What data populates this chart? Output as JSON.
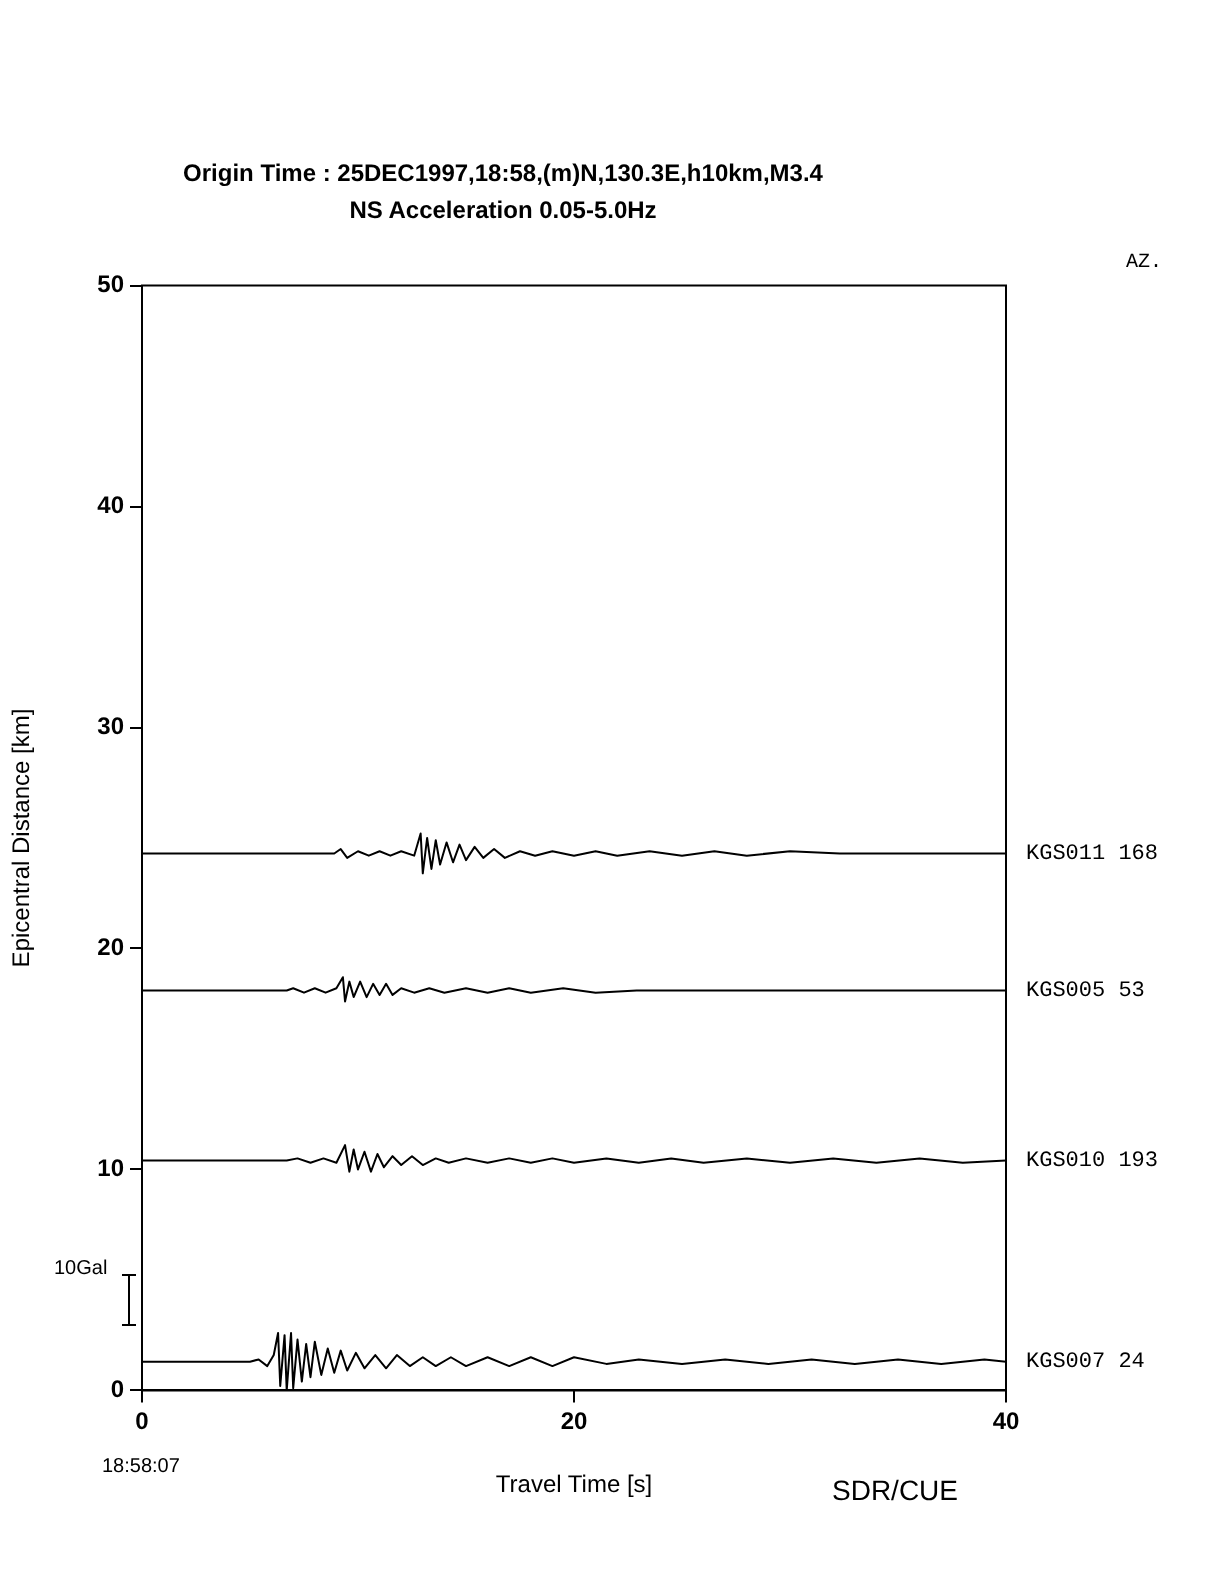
{
  "chart_data": {
    "type": "line",
    "title": "Origin Time : 25DEC1997,18:58,(m)N,130.3E,h10km,M3.4",
    "subtitle": "NS Acceleration 0.05-5.0Hz",
    "xlabel": "Travel Time [s]",
    "ylabel": "Epicentral Distance [km]",
    "xlim": [
      0,
      40
    ],
    "xticks": [
      0,
      20,
      40
    ],
    "ylim": [
      0,
      50
    ],
    "yticks": [
      0,
      10,
      20,
      30,
      40,
      50
    ],
    "grid": false,
    "legend": false,
    "marker": "none",
    "line_style": "solid",
    "annotations": [
      "AZ.",
      "18:58:07",
      "10Gal",
      "SDR/CUE"
    ],
    "series": [
      {
        "name": "KGS011 168",
        "color": "#000000",
        "x": [
          0,
          8.9,
          9.2,
          9.5,
          10,
          10.5,
          11,
          11.5,
          12,
          12.6,
          12.9,
          13.0,
          13.2,
          13.4,
          13.6,
          13.8,
          14.1,
          14.4,
          14.7,
          15,
          15.4,
          15.8,
          16.3,
          16.8,
          17.5,
          18.2,
          19,
          20,
          21,
          22,
          23.5,
          25,
          26.5,
          28,
          30,
          32.3,
          40
        ],
        "values": [
          24.3,
          24.3,
          24.5,
          24.1,
          24.4,
          24.2,
          24.4,
          24.2,
          24.4,
          24.2,
          25.2,
          23.4,
          25.0,
          23.6,
          24.9,
          23.8,
          24.8,
          23.9,
          24.7,
          24.0,
          24.6,
          24.1,
          24.5,
          24.1,
          24.4,
          24.2,
          24.4,
          24.2,
          24.4,
          24.2,
          24.4,
          24.2,
          24.4,
          24.2,
          24.4,
          24.3,
          24.3
        ]
      },
      {
        "name": "KGS005 53",
        "color": "#000000",
        "x": [
          0,
          6.7,
          7,
          7.5,
          8,
          8.5,
          9.0,
          9.3,
          9.4,
          9.6,
          9.8,
          10.1,
          10.4,
          10.7,
          11,
          11.3,
          11.6,
          12,
          12.6,
          13.3,
          14,
          15,
          16,
          17,
          18,
          19.5,
          21,
          22.9,
          40
        ],
        "values": [
          18.1,
          18.1,
          18.2,
          18.0,
          18.2,
          18.0,
          18.2,
          18.7,
          17.6,
          18.5,
          17.8,
          18.5,
          17.8,
          18.4,
          17.9,
          18.4,
          17.9,
          18.2,
          18.0,
          18.2,
          18.0,
          18.2,
          18.0,
          18.2,
          18.0,
          18.2,
          18.0,
          18.1,
          18.1
        ]
      },
      {
        "name": "KGS010 193",
        "color": "#000000",
        "x": [
          0,
          6.7,
          7.2,
          7.8,
          8.4,
          9,
          9.4,
          9.6,
          9.8,
          10,
          10.3,
          10.6,
          10.9,
          11.2,
          11.6,
          12,
          12.5,
          13,
          13.6,
          14.2,
          15,
          16,
          17,
          18,
          19,
          20,
          21.5,
          23,
          24.5,
          26,
          28,
          30,
          32,
          34,
          36,
          38,
          40
        ],
        "values": [
          10.4,
          10.4,
          10.5,
          10.3,
          10.5,
          10.3,
          11.1,
          9.9,
          10.9,
          10.0,
          10.8,
          9.9,
          10.7,
          10.1,
          10.6,
          10.2,
          10.6,
          10.2,
          10.5,
          10.3,
          10.5,
          10.3,
          10.5,
          10.3,
          10.5,
          10.3,
          10.5,
          10.3,
          10.5,
          10.3,
          10.5,
          10.3,
          10.5,
          10.3,
          10.5,
          10.3,
          10.4
        ]
      },
      {
        "name": "KGS007 24",
        "color": "#000000",
        "x": [
          0,
          5.0,
          5.4,
          5.8,
          6.1,
          6.3,
          6.4,
          6.6,
          6.7,
          6.9,
          7.0,
          7.2,
          7.4,
          7.6,
          7.8,
          8.0,
          8.3,
          8.6,
          8.9,
          9.2,
          9.5,
          9.9,
          10.3,
          10.8,
          11.3,
          11.8,
          12.4,
          13,
          13.6,
          14.3,
          15,
          16,
          17,
          18,
          19,
          20,
          21.5,
          23,
          25,
          27,
          29,
          31,
          33,
          35,
          37,
          39,
          40
        ],
        "values": [
          1.3,
          1.3,
          1.4,
          1.1,
          1.6,
          2.6,
          0.2,
          2.5,
          0.0,
          2.6,
          0.1,
          2.3,
          0.4,
          2.1,
          0.6,
          2.2,
          0.7,
          1.9,
          0.8,
          1.8,
          0.9,
          1.7,
          1.0,
          1.6,
          1.0,
          1.6,
          1.1,
          1.5,
          1.1,
          1.5,
          1.1,
          1.5,
          1.1,
          1.5,
          1.1,
          1.5,
          1.2,
          1.4,
          1.2,
          1.4,
          1.2,
          1.4,
          1.2,
          1.4,
          1.2,
          1.4,
          1.3
        ]
      }
    ]
  }
}
